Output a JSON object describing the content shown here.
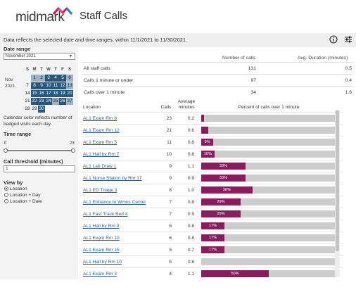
{
  "header": {
    "logo_text": "midmark",
    "title": "Staff Calls"
  },
  "infobar": {
    "text": "Data reflects the selected date and time ranges, within 11/1/2021 to 11/30/2021.",
    "info_icon": "info-icon",
    "filter_icon": "sliders-icon"
  },
  "sidebar": {
    "date_range_label": "Date range",
    "month_select": "November 2021",
    "calendar": {
      "month": "Nov",
      "year": "2021",
      "weekdays": [
        "S",
        "M",
        "T",
        "W",
        "T",
        "F",
        "S"
      ],
      "days": [
        {
          "d": "1",
          "s": "mid"
        },
        {
          "d": "2",
          "s": "mid"
        },
        {
          "d": "3",
          "s": "dark"
        },
        {
          "d": "4",
          "s": "dark"
        },
        {
          "d": "5",
          "s": "dark"
        },
        {
          "d": "6",
          "s": "mid"
        },
        {
          "d": "7",
          "s": "light"
        },
        {
          "d": "8",
          "s": "dark"
        },
        {
          "d": "9",
          "s": "dark"
        },
        {
          "d": "10",
          "s": "dark"
        },
        {
          "d": "11",
          "s": "dark"
        },
        {
          "d": "12",
          "s": "dark"
        },
        {
          "d": "13",
          "s": "mid"
        },
        {
          "d": "14",
          "s": "light"
        },
        {
          "d": "15",
          "s": "dark"
        },
        {
          "d": "16",
          "s": "dark"
        },
        {
          "d": "17",
          "s": "dark"
        },
        {
          "d": "18",
          "s": "dark"
        },
        {
          "d": "19",
          "s": "dark"
        },
        {
          "d": "20",
          "s": "dark"
        },
        {
          "d": "21",
          "s": "light"
        },
        {
          "d": "22",
          "s": "dark"
        },
        {
          "d": "23",
          "s": "dark"
        },
        {
          "d": "24",
          "s": "dark"
        },
        {
          "d": "25",
          "s": "mid"
        },
        {
          "d": "26",
          "s": "dark"
        },
        {
          "d": "27",
          "s": "mid"
        },
        {
          "d": "28",
          "s": "light"
        },
        {
          "d": "29",
          "s": "light"
        },
        {
          "d": "30",
          "s": "dark"
        }
      ]
    },
    "calendar_note": "Calendar color reflects number of badged visits each day.",
    "time_range_label": "Time range",
    "time_min": "0",
    "time_max": "23",
    "threshold_label": "Call threshold (minutes)",
    "threshold_value": "1",
    "view_by_label": "View by",
    "view_options": [
      {
        "label": "Location",
        "checked": true
      },
      {
        "label": "Location + Day",
        "checked": false
      },
      {
        "label": "Location + Date",
        "checked": false
      }
    ]
  },
  "summary": {
    "col_calls": "Number of calls",
    "col_duration": "Avg. Duration (minutes)",
    "rows": [
      {
        "label": "All staff calls",
        "calls": "131",
        "duration": "0.5"
      },
      {
        "label": "Calls 1 minute or under",
        "calls": "97",
        "duration": "0.4"
      },
      {
        "label": "Calls over 1 minute",
        "calls": "34",
        "duration": "1.6"
      }
    ]
  },
  "table": {
    "col_location": "Location",
    "col_calls": "Calls",
    "col_avg": "Average minutes",
    "col_pct": "Percent of calls over 1 minute",
    "rows": [
      {
        "location": "AL1 Exam Rm 8",
        "calls": "23",
        "avg": "0.2",
        "pct": 0.02,
        "label": ""
      },
      {
        "location": "AL1 Exam Rm 12",
        "calls": "21",
        "avg": "0.6",
        "pct": 0.05,
        "label": ""
      },
      {
        "location": "AL1 Exam Rm 5",
        "calls": "11",
        "avg": "0.8",
        "pct": 0.09,
        "label": "9%"
      },
      {
        "location": "AL1 Hall by Rm 7",
        "calls": "10",
        "avg": "0.8",
        "pct": 0.1,
        "label": "10%"
      },
      {
        "location": "AL1 Lab Draw 1",
        "calls": "9",
        "avg": "1.1",
        "pct": 0.33,
        "label": "33%"
      },
      {
        "location": "AL1 Nurse Station by Rm 17",
        "calls": "9",
        "avg": "0.9",
        "pct": 0.33,
        "label": "33%"
      },
      {
        "location": "AL1 ED Triage 3",
        "calls": "8",
        "avg": "1.0",
        "pct": 0.38,
        "label": "38%"
      },
      {
        "location": "AL1 Entrance to Wmns Center",
        "calls": "7",
        "avg": "0.8",
        "pct": 0.29,
        "label": "29%"
      },
      {
        "location": "AL1 Fast Track Bed 4",
        "calls": "7",
        "avg": "0.9",
        "pct": 0.29,
        "label": "29%"
      },
      {
        "location": "AL1 Hall by Rm 9",
        "calls": "6",
        "avg": "0.8",
        "pct": 0.17,
        "label": "17%"
      },
      {
        "location": "AL1 Exam Rm 10",
        "calls": "6",
        "avg": "0.8",
        "pct": 0.17,
        "label": "17%"
      },
      {
        "location": "AL1 Exam Rm 15",
        "calls": "5",
        "avg": "0.7",
        "pct": 0.17,
        "label": "17%"
      },
      {
        "location": "AL1 Hall by Rm 10",
        "calls": "5",
        "avg": "0.8",
        "pct": 0.0,
        "label": ""
      },
      {
        "location": "AL1 Exam Rm 3",
        "calls": "4",
        "avg": "1.1",
        "pct": 0.5,
        "label": "50%"
      }
    ]
  },
  "colors": {
    "accent": "#8c1a5e",
    "calendar_dark": "#27587e",
    "calendar_mid": "#9ab3c9",
    "bar_bg": "#cccccc"
  }
}
